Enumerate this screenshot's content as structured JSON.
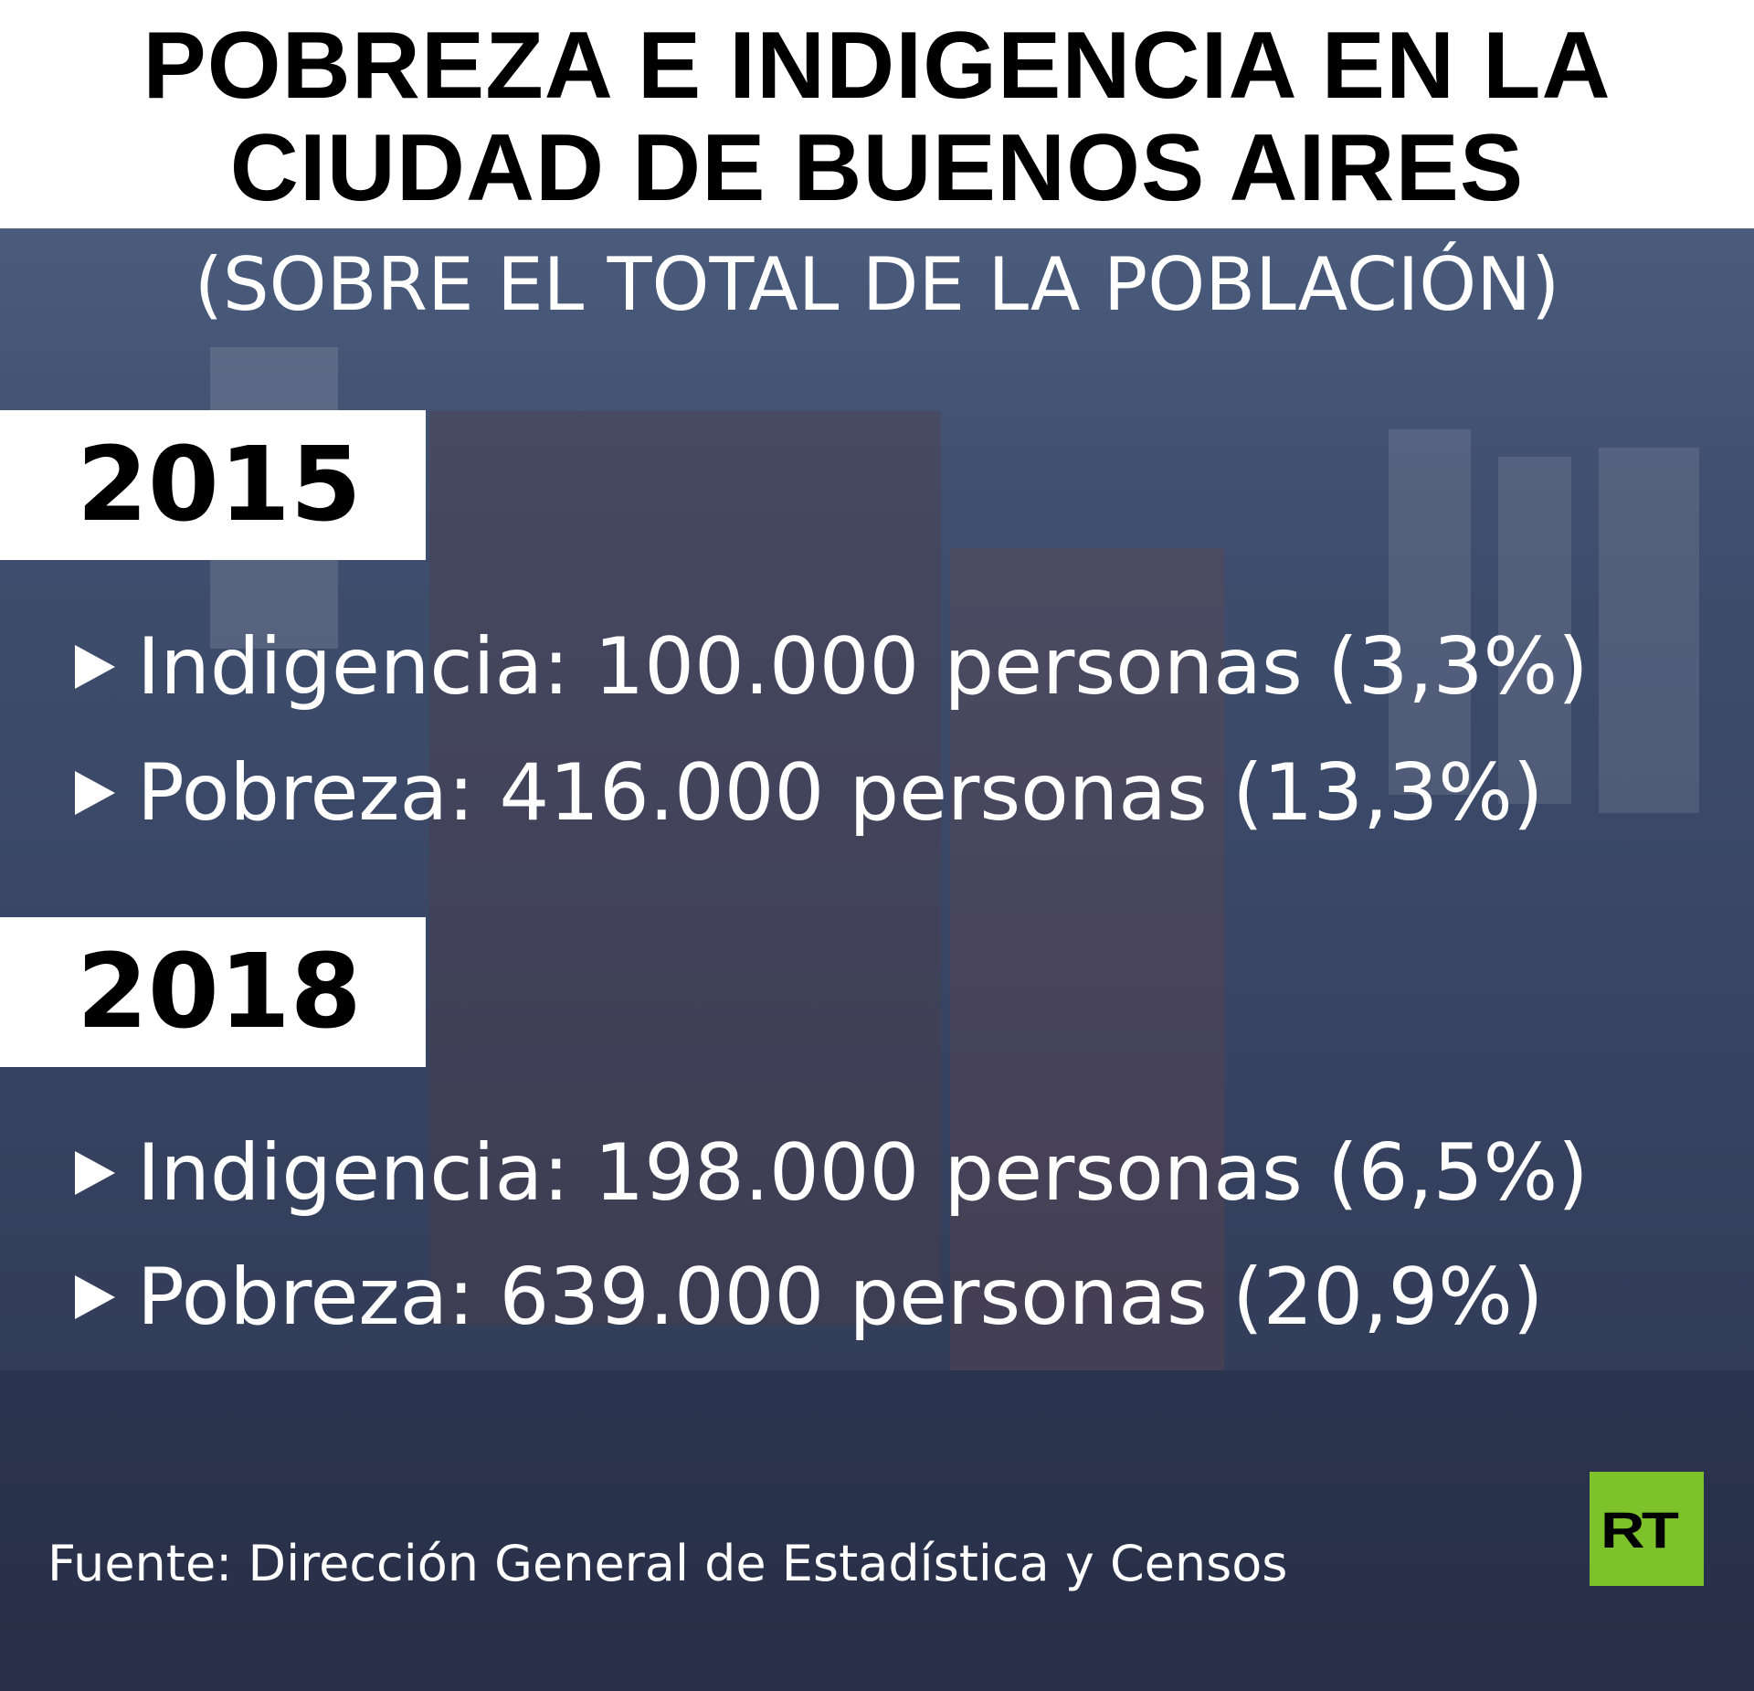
{
  "title": {
    "line1": "POBREZA E INDIGENCIA EN LA",
    "line2": "CIUDAD DE BUENOS AIRES"
  },
  "subtitle": "(SOBRE EL TOTAL DE LA POBLACIÓN)",
  "sections": [
    {
      "year": "2015",
      "rows": [
        {
          "text": "Indigencia: 100.000 personas (3,3%)"
        },
        {
          "text": "Pobreza: 416.000 personas (13,3%)"
        }
      ]
    },
    {
      "year": "2018",
      "rows": [
        {
          "text": "Indigencia: 198.000 personas (6,5%)"
        },
        {
          "text": "Pobreza: 639.000 personas (20,9%)"
        }
      ]
    }
  ],
  "source": "Fuente: Dirección General de Estadística y Censos",
  "logo": {
    "text": "RT",
    "color": "#7dc22a"
  }
}
